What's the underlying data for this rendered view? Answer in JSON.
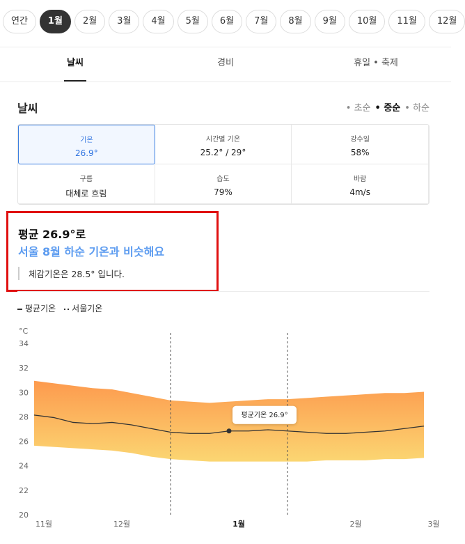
{
  "month_tabs": {
    "items": [
      "연간",
      "1월",
      "2월",
      "3월",
      "4월",
      "5월",
      "6월",
      "7월",
      "8월",
      "9월",
      "10월",
      "11월",
      "12월"
    ],
    "selected": 1
  },
  "nav_tabs": {
    "items": [
      "날씨",
      "경비",
      "휴일 • 축제"
    ],
    "selected": 0
  },
  "section": {
    "title": "날씨",
    "periods": [
      "• 초순",
      "• 중순",
      "• 하순"
    ],
    "selected_period": 1
  },
  "stats": [
    {
      "label": "기온",
      "value": "26.9°"
    },
    {
      "label": "시간별 기온",
      "value": "25.2° / 29°"
    },
    {
      "label": "강수일",
      "value": "58%"
    },
    {
      "label": "구름",
      "value": "대체로 흐림"
    },
    {
      "label": "습도",
      "value": "79%"
    },
    {
      "label": "바람",
      "value": "4m/s"
    }
  ],
  "summary": {
    "title": "평균 26.9°로",
    "subtitle": "서울 8월 하순 기온과 비슷해요",
    "note": "체감기온은 28.5° 입니다."
  },
  "chart_data": {
    "type": "line",
    "legend": [
      "평균기온",
      "서울기온"
    ],
    "y_unit": "°C",
    "categories": [
      "11월",
      null,
      null,
      null,
      "12월",
      null,
      null,
      null,
      null,
      null,
      "1월",
      null,
      null,
      null,
      null,
      null,
      "2월",
      null,
      null,
      null,
      "3월"
    ],
    "bold_category": 10,
    "series": [
      {
        "name": "평균기온",
        "color": "#333333",
        "values": [
          28.2,
          28.0,
          27.6,
          27.5,
          27.6,
          27.4,
          27.1,
          26.8,
          26.7,
          26.7,
          26.9,
          26.9,
          27.0,
          26.9,
          26.8,
          26.7,
          26.7,
          26.8,
          26.9,
          27.1,
          27.3
        ]
      }
    ],
    "band": {
      "colors": [
        "#fd9a4e",
        "#fbd672"
      ],
      "high": [
        31.0,
        30.8,
        30.6,
        30.4,
        30.3,
        30.0,
        29.7,
        29.4,
        29.3,
        29.2,
        29.3,
        29.4,
        29.5,
        29.5,
        29.6,
        29.7,
        29.8,
        29.9,
        30.0,
        30.0,
        30.1
      ],
      "low": [
        25.7,
        25.6,
        25.5,
        25.4,
        25.3,
        25.1,
        24.8,
        24.6,
        24.5,
        24.4,
        24.4,
        24.4,
        24.4,
        24.4,
        24.4,
        24.5,
        24.5,
        24.5,
        24.6,
        24.6,
        24.7
      ]
    },
    "highlight_range": [
      7,
      13
    ],
    "tooltip": {
      "index": 10,
      "label": "평균기온 26.9°"
    },
    "ylim": [
      20,
      34
    ],
    "yticks": [
      20,
      22,
      24,
      26,
      28,
      30,
      32,
      34
    ]
  }
}
